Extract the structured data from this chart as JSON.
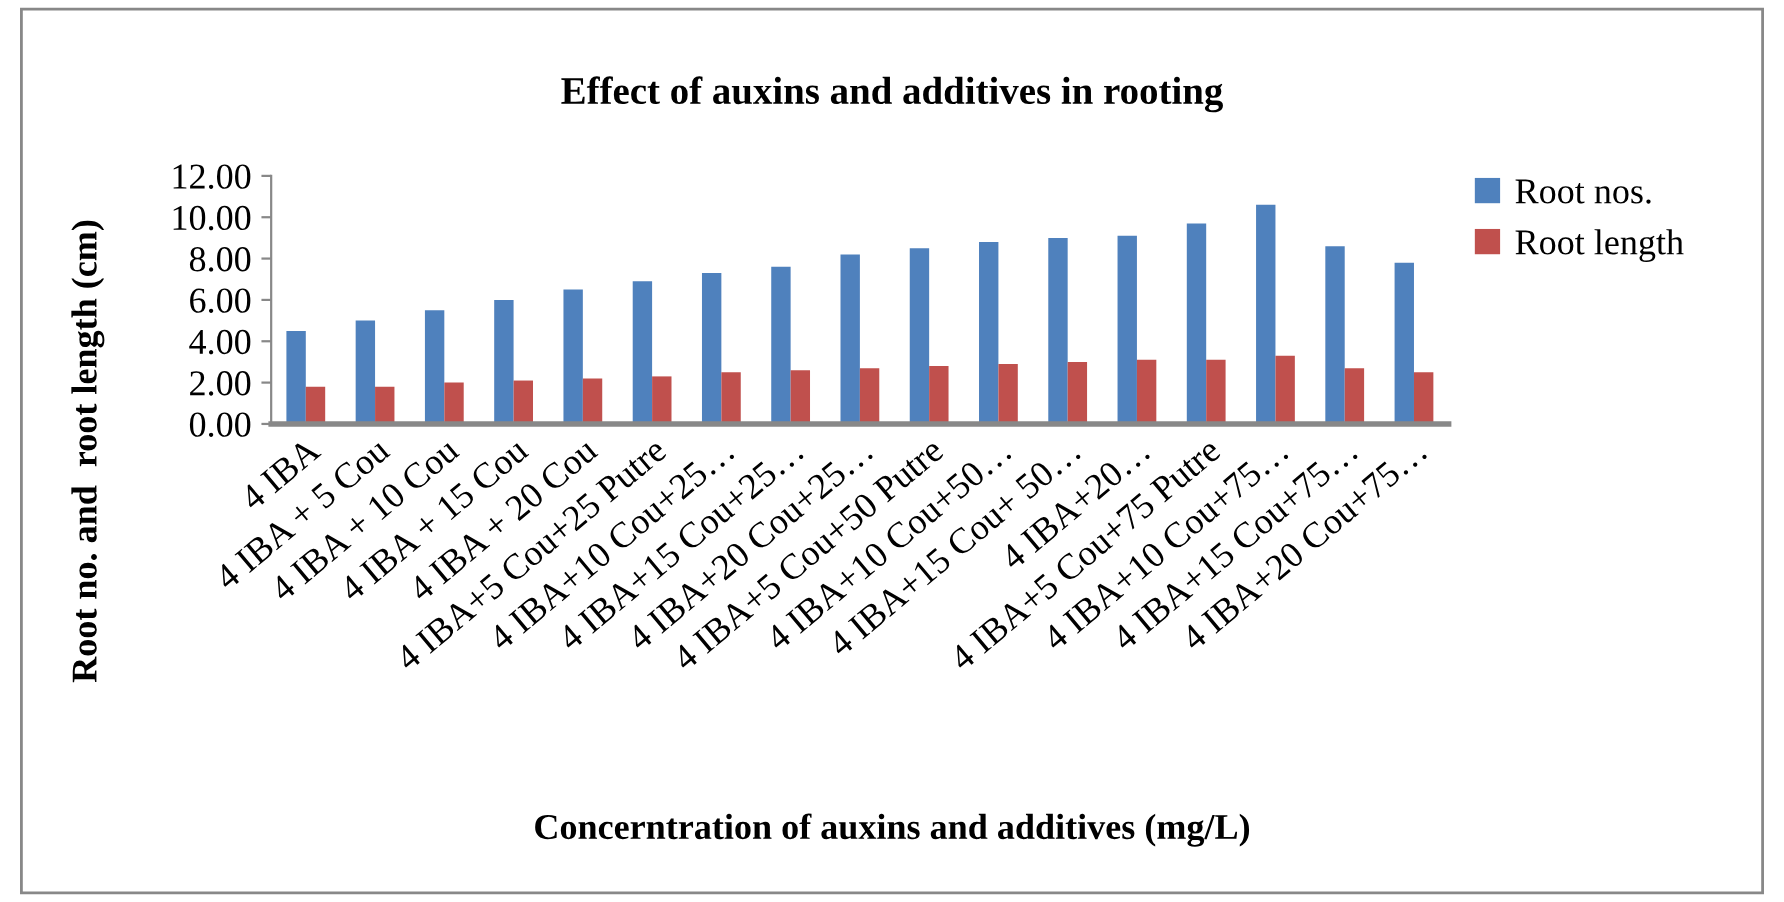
{
  "chart_data": {
    "type": "bar",
    "title": "Effect of auxins and additives in rooting",
    "xlabel": "Concerntration of auxins and additives (mg/L)",
    "ylabel": "Root no. and  root length (cm)",
    "categories": [
      "4 IBA",
      "4 IBA + 5 Cou",
      "4 IBA + 10 Cou",
      "4 IBA + 15 Cou",
      "4 IBA + 20 Cou",
      "4 IBA+5 Cou+25 Putre",
      "4 IBA+10 Cou+25…",
      "4 IBA+15 Cou+25…",
      "4 IBA+20 Cou+25…",
      "4 IBA+5 Cou+50 Putre",
      "4 IBA+10 Cou+50…",
      "4 IBA+15 Cou+ 50…",
      "4 IBA+20…",
      "4 IBA+5 Cou+75 Putre",
      "4 IBA+10 Cou+75…",
      "4 IBA+15 Cou+75…",
      "4 IBA+20 Cou+75…"
    ],
    "series": [
      {
        "name": "Root nos.",
        "color": "#4f81bd",
        "values": [
          4.5,
          5.0,
          5.5,
          6.0,
          6.5,
          6.9,
          7.3,
          7.6,
          8.2,
          8.5,
          8.8,
          9.0,
          9.1,
          9.7,
          10.6,
          8.6,
          7.8
        ]
      },
      {
        "name": "Root length",
        "color": "#c0504d",
        "values": [
          1.8,
          1.8,
          2.0,
          2.1,
          2.2,
          2.3,
          2.5,
          2.6,
          2.7,
          2.8,
          2.9,
          3.0,
          3.1,
          3.1,
          3.3,
          2.7,
          2.5
        ]
      }
    ],
    "ylim": [
      0,
      12
    ],
    "yticks": [
      {
        "value": 0,
        "label": "0.00"
      },
      {
        "value": 2,
        "label": "2.00"
      },
      {
        "value": 4,
        "label": "4.00"
      },
      {
        "value": 6,
        "label": "6.00"
      },
      {
        "value": 8,
        "label": "8.00"
      },
      {
        "value": 10,
        "label": "10.00"
      },
      {
        "value": 12,
        "label": "12.00"
      }
    ],
    "grid": false,
    "legend": "top right"
  }
}
